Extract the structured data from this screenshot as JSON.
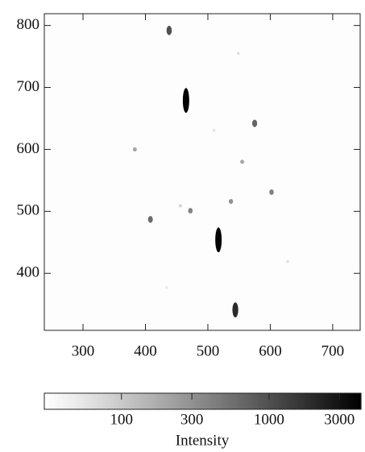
{
  "chart_data": {
    "type": "image",
    "x": [
      438,
      465,
      575,
      383,
      555,
      602,
      537,
      472,
      408,
      517,
      544,
      549,
      510,
      456,
      628,
      434
    ],
    "y": [
      792,
      679,
      642,
      600,
      580,
      531,
      516,
      501,
      487,
      454,
      341,
      755,
      631,
      509,
      419,
      377
    ],
    "values": [
      1000,
      4000,
      700,
      200,
      200,
      400,
      300,
      400,
      600,
      4000,
      2000,
      60,
      60,
      80,
      60,
      50
    ],
    "xlim": [
      238,
      744
    ],
    "xticks": [
      300,
      400,
      500,
      600,
      700
    ],
    "ylim": [
      308,
      819
    ],
    "yticks": [
      400,
      500,
      600,
      700,
      800
    ],
    "colorbar": {
      "label": "Intensity",
      "lim": [
        30,
        4200
      ],
      "ticks": [
        100,
        300,
        1000,
        3000
      ],
      "log": true
    }
  }
}
